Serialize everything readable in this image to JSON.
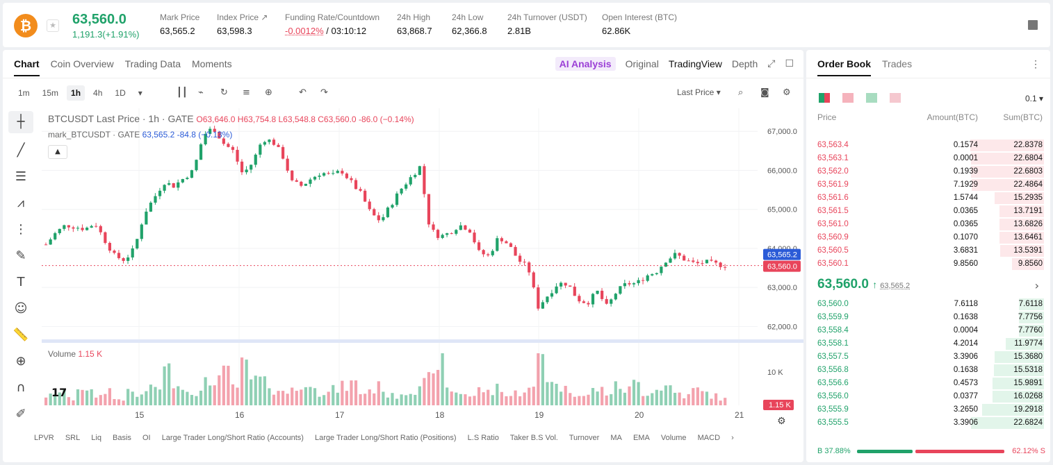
{
  "header": {
    "coin_icon": "bitcoin-icon",
    "last_price": "63,560.0",
    "change": "1,191.3(+1.91%)",
    "stats": [
      {
        "label": "Mark Price",
        "value": "63,565.2"
      },
      {
        "label": "Index Price ↗",
        "value": "63,598.3"
      },
      {
        "label": "Funding Rate/Countdown",
        "value_rate": "-0.0012%",
        "value_countdown": " / 03:10:12"
      },
      {
        "label": "24h High",
        "value": "63,868.7"
      },
      {
        "label": "24h Low",
        "value": "62,366.8"
      },
      {
        "label": "24h Turnover (USDT)",
        "value": "2.81B"
      },
      {
        "label": "Open Interest (BTC)",
        "value": "62.86K"
      }
    ]
  },
  "chart_panel": {
    "tabs": [
      "Chart",
      "Coin Overview",
      "Trading Data",
      "Moments"
    ],
    "view_tabs": {
      "ai": "AI Analysis",
      "original": "Original",
      "tradingview": "TradingView",
      "depth": "Depth"
    },
    "intervals": [
      "1m",
      "15m",
      "1h",
      "4h",
      "1D"
    ],
    "last_price_select": "Last Price",
    "legend": {
      "symbol": "BTCUSDT Last Price · 1h · GATE",
      "ohlc": "O63,646.0  H63,754.8  L63,548.8  C63,560.0  -86.0 (−0.14%)",
      "mark_label": "mark_BTCUSDT · GATE",
      "mark_value": "63,565.2  -84.8 (−0.13%)"
    },
    "volume_legend": {
      "label": "Volume",
      "value": "1.15 K"
    },
    "bottom_links": [
      "LPVR",
      "SRL",
      "Liq",
      "Basis",
      "OI",
      "Large Trader Long/Short Ratio (Accounts)",
      "Large Trader Long/Short Ratio (Positions)",
      "L.S Ratio",
      "Taker B.S Vol.",
      "Turnover",
      "MA",
      "EMA",
      "Volume",
      "MACD"
    ]
  },
  "chart_data": {
    "type": "candlestick",
    "x_ticks": [
      "15",
      "16",
      "17",
      "18",
      "19",
      "20",
      "21"
    ],
    "y_ticks": [
      "67,000.0",
      "66,000.0",
      "65,000.0",
      "64,000.0",
      "63,000.0",
      "62,000.0"
    ],
    "ylim": [
      61900,
      67200
    ],
    "volume_ticks": [
      "10 K"
    ],
    "mark_label": "63,565.2",
    "last_label": "63,560.0",
    "volume_label": "1.15 K",
    "close_path": [
      64100,
      64400,
      64600,
      64550,
      64500,
      64650,
      64200,
      63800,
      63700,
      64000,
      64900,
      65300,
      65700,
      65600,
      65800,
      66000,
      66900,
      67100,
      66700,
      66500,
      65900,
      66200,
      66800,
      66750,
      66400,
      65700,
      65600,
      65800,
      65950,
      65850,
      66000,
      65700,
      65400,
      64900,
      64700,
      65100,
      65500,
      65800,
      66100,
      64500,
      64300,
      64400,
      64600,
      64500,
      63900,
      63800,
      64300,
      64100,
      63700,
      63500,
      62500,
      62800,
      63100,
      63100,
      62700,
      62600,
      62900,
      62500,
      62900,
      63100,
      63100,
      63300,
      63400,
      63700,
      63850,
      63700,
      63600,
      63650,
      63600,
      63560
    ],
    "volume_path": [
      3,
      5,
      2,
      6,
      4,
      3,
      5,
      2,
      4,
      3,
      5,
      6,
      11,
      8,
      5,
      4,
      7,
      9,
      10,
      6,
      12,
      8,
      7,
      5,
      4,
      6,
      5,
      8,
      4,
      5,
      6,
      7,
      4,
      5,
      6,
      3,
      4,
      5,
      7,
      8,
      16,
      5,
      4,
      3,
      5,
      4,
      6,
      3,
      4,
      5,
      17,
      9,
      6,
      5,
      4,
      3,
      5,
      4,
      6,
      5,
      7,
      4,
      5,
      6,
      4,
      3,
      5,
      4,
      3,
      2
    ]
  },
  "order_book": {
    "tabs": [
      "Order Book",
      "Trades"
    ],
    "precision": "0.1",
    "headers": [
      "Price",
      "Amount(BTC)",
      "Sum(BTC)"
    ],
    "asks": [
      {
        "p": "63,563.4",
        "a": "0.1574",
        "s": "22.8378",
        "depth": 1.0
      },
      {
        "p": "63,563.1",
        "a": "0.0001",
        "s": "22.6804",
        "depth": 0.99
      },
      {
        "p": "63,562.0",
        "a": "0.1939",
        "s": "22.6803",
        "depth": 0.99
      },
      {
        "p": "63,561.9",
        "a": "7.1929",
        "s": "22.4864",
        "depth": 0.98
      },
      {
        "p": "63,561.6",
        "a": "1.5744",
        "s": "15.2935",
        "depth": 0.67
      },
      {
        "p": "63,561.5",
        "a": "0.0365",
        "s": "13.7191",
        "depth": 0.6
      },
      {
        "p": "63,561.0",
        "a": "0.0365",
        "s": "13.6826",
        "depth": 0.6
      },
      {
        "p": "63,560.9",
        "a": "0.1070",
        "s": "13.6461",
        "depth": 0.6
      },
      {
        "p": "63,560.5",
        "a": "3.6831",
        "s": "13.5391",
        "depth": 0.59
      },
      {
        "p": "63,560.1",
        "a": "9.8560",
        "s": "9.8560",
        "depth": 0.43
      }
    ],
    "mid": {
      "price": "63,560.0",
      "arrow": "↑",
      "mark": "63,565.2"
    },
    "bids": [
      {
        "p": "63,560.0",
        "a": "7.6118",
        "s": "7.6118",
        "depth": 0.34
      },
      {
        "p": "63,559.9",
        "a": "0.1638",
        "s": "7.7756",
        "depth": 0.34
      },
      {
        "p": "63,558.4",
        "a": "0.0004",
        "s": "7.7760",
        "depth": 0.34
      },
      {
        "p": "63,558.1",
        "a": "4.2014",
        "s": "11.9774",
        "depth": 0.52
      },
      {
        "p": "63,557.5",
        "a": "3.3906",
        "s": "15.3680",
        "depth": 0.67
      },
      {
        "p": "63,556.8",
        "a": "0.1638",
        "s": "15.5318",
        "depth": 0.68
      },
      {
        "p": "63,556.6",
        "a": "0.4573",
        "s": "15.9891",
        "depth": 0.7
      },
      {
        "p": "63,556.0",
        "a": "0.0377",
        "s": "16.0268",
        "depth": 0.7
      },
      {
        "p": "63,555.9",
        "a": "3.2650",
        "s": "19.2918",
        "depth": 0.84
      },
      {
        "p": "63,555.5",
        "a": "3.3906",
        "s": "22.6824",
        "depth": 0.99
      }
    ],
    "ratio": {
      "buy": "B  37.88%",
      "sell": "62.12%  S"
    }
  },
  "colors": {
    "up": "#20a26a",
    "down": "#e8455b",
    "mark": "#2b5bd7"
  }
}
